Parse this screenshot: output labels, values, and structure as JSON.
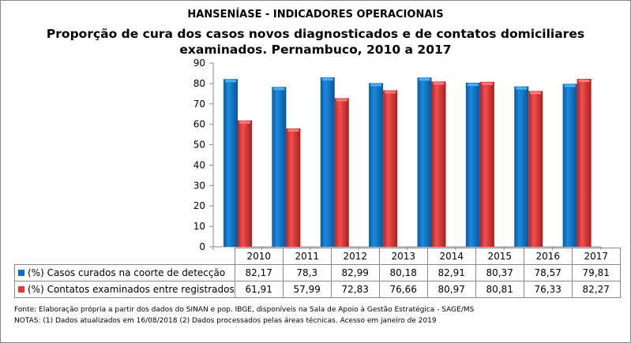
{
  "chart_data": {
    "type": "bar",
    "supertitle": "HANSENÍASE - INDICADORES OPERACIONAIS",
    "title_line1": "Proporção de cura dos casos novos diagnosticados e de contatos domiciliares",
    "title_line2": "examinados.  Pernambuco, 2010 a 2017",
    "categories": [
      "2010",
      "2011",
      "2012",
      "2013",
      "2014",
      "2015",
      "2016",
      "2017"
    ],
    "ylim": [
      0,
      90
    ],
    "yticks": [
      "0",
      "10",
      "20",
      "30",
      "40",
      "50",
      "60",
      "70",
      "80",
      "90"
    ],
    "grid": false,
    "legend": "data-table",
    "series": [
      {
        "name": "(%) Casos curados na coorte de detecção",
        "color": "#0a72c4",
        "values": [
          82.17,
          78.3,
          82.99,
          80.18,
          82.91,
          80.37,
          78.57,
          79.81
        ],
        "labels": [
          "82,17",
          "78,3",
          "82,99",
          "80,18",
          "82,91",
          "80,37",
          "78,57",
          "79,81"
        ]
      },
      {
        "name": "(%) Contatos examinados entre registrados",
        "color": "#e23b3b",
        "values": [
          61.91,
          57.99,
          72.83,
          76.66,
          80.97,
          80.81,
          76.33,
          82.27
        ],
        "labels": [
          "61,91",
          "57,99",
          "72,83",
          "76,66",
          "80,97",
          "80,81",
          "76,33",
          "82,27"
        ]
      }
    ]
  },
  "footer": {
    "source": "Fonte:  Elaboração própria a partir dos dados do  SINAN  e pop. IBGE, disponíveis na Sala de Apoio à Gestão Estratégica -  SAGE/MS",
    "notes": "NOTAS: (1) Dados atualizados em 16/08/2018 (2) Dados processados pelas áreas técnicas. Acesso em janeiro de 2019"
  }
}
